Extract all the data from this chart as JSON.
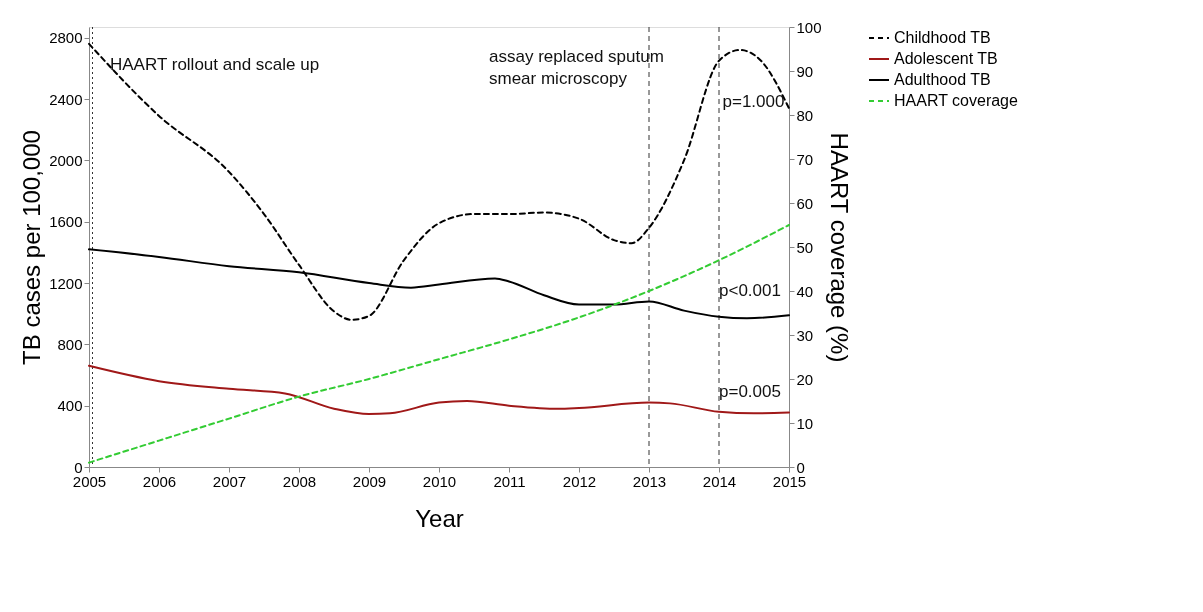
{
  "chart_data": {
    "type": "line",
    "xlabel": "Year",
    "ylabel": "TB cases per 100,000",
    "y2label": "HAART coverage (%)",
    "xlim": [
      2005,
      2015
    ],
    "xticks": [
      2005,
      2006,
      2007,
      2008,
      2009,
      2010,
      2011,
      2012,
      2013,
      2014,
      2015
    ],
    "ylim": [
      0,
      2870
    ],
    "yticks": [
      0,
      400,
      800,
      1200,
      1600,
      2000,
      2400,
      2800
    ],
    "y2lim": [
      0,
      100
    ],
    "y2ticks": [
      0,
      10,
      20,
      30,
      40,
      50,
      60,
      70,
      80,
      90,
      100
    ],
    "grid": false,
    "legend": "right",
    "marker": "none",
    "series": [
      {
        "name": "Childhood TB",
        "color": "#000000",
        "line_style": "dashed",
        "x": [
          2005,
          2006,
          2007,
          2007.5,
          2008,
          2008.5,
          2008.75,
          2009,
          2009.5,
          2010,
          2010.5,
          2011,
          2011.5,
          2012,
          2012.5,
          2012.75,
          2013,
          2013.5,
          2014,
          2014.3,
          2014.6,
          2015
        ],
        "values": [
          2760,
          2290,
          1925,
          1650,
          1318,
          1015,
          960,
          985,
          1350,
          1590,
          1650,
          1650,
          1660,
          1620,
          1480,
          1460,
          1560,
          2000,
          2650,
          2720,
          2650,
          2340
        ]
      },
      {
        "name": "Adolescent TB",
        "color": "#a01818",
        "line_style": "solid",
        "x": [
          2005,
          2006,
          2007,
          2007.8,
          2008.5,
          2009,
          2009.3,
          2010,
          2010.4,
          2011,
          2011.7,
          2012,
          2013,
          2013.3,
          2014,
          2014.5,
          2015
        ],
        "values": [
          660,
          560,
          510,
          480,
          380,
          345,
          350,
          420,
          430,
          400,
          380,
          385,
          420,
          415,
          360,
          350,
          355
        ]
      },
      {
        "name": "Adulthood TB",
        "color": "#000000",
        "line_style": "solid",
        "x": [
          2005,
          2006,
          2007,
          2008,
          2009,
          2009.6,
          2010,
          2010.8,
          2011,
          2011.5,
          2012,
          2012.5,
          2013,
          2013.5,
          2014,
          2014.4,
          2015
        ],
        "values": [
          1420,
          1370,
          1310,
          1270,
          1200,
          1170,
          1190,
          1230,
          1210,
          1120,
          1060,
          1060,
          1080,
          1020,
          980,
          970,
          990
        ]
      },
      {
        "name": "HAART coverage",
        "color": "#33cc33",
        "line_style": "dashed",
        "axis": "y2",
        "x": [
          2005,
          2006,
          2007,
          2008,
          2009,
          2010,
          2011,
          2012,
          2013,
          2014,
          2015
        ],
        "values": [
          1,
          6,
          11,
          16,
          20,
          24.5,
          29,
          34,
          40,
          47,
          55
        ]
      }
    ],
    "ref_lines": [
      {
        "axis": "x",
        "value": 2005.05,
        "line_style": "dotted"
      },
      {
        "axis": "x",
        "value": 2013,
        "line_style": "dashed"
      },
      {
        "axis": "x",
        "value": 2014,
        "line_style": "dashed"
      }
    ],
    "annotations": [
      {
        "text": "HAART rollout and scale up",
        "x": 2005.3,
        "y": 2620
      },
      "assay replaced sputum smear microscopy",
      {
        "text": "p=1.000",
        "x": 2014.05,
        "y": 2380
      },
      {
        "text": "p<0.001",
        "x": 2014.0,
        "y": 1150
      },
      {
        "text": "p=0.005",
        "x": 2014.0,
        "y": 490
      }
    ]
  }
}
